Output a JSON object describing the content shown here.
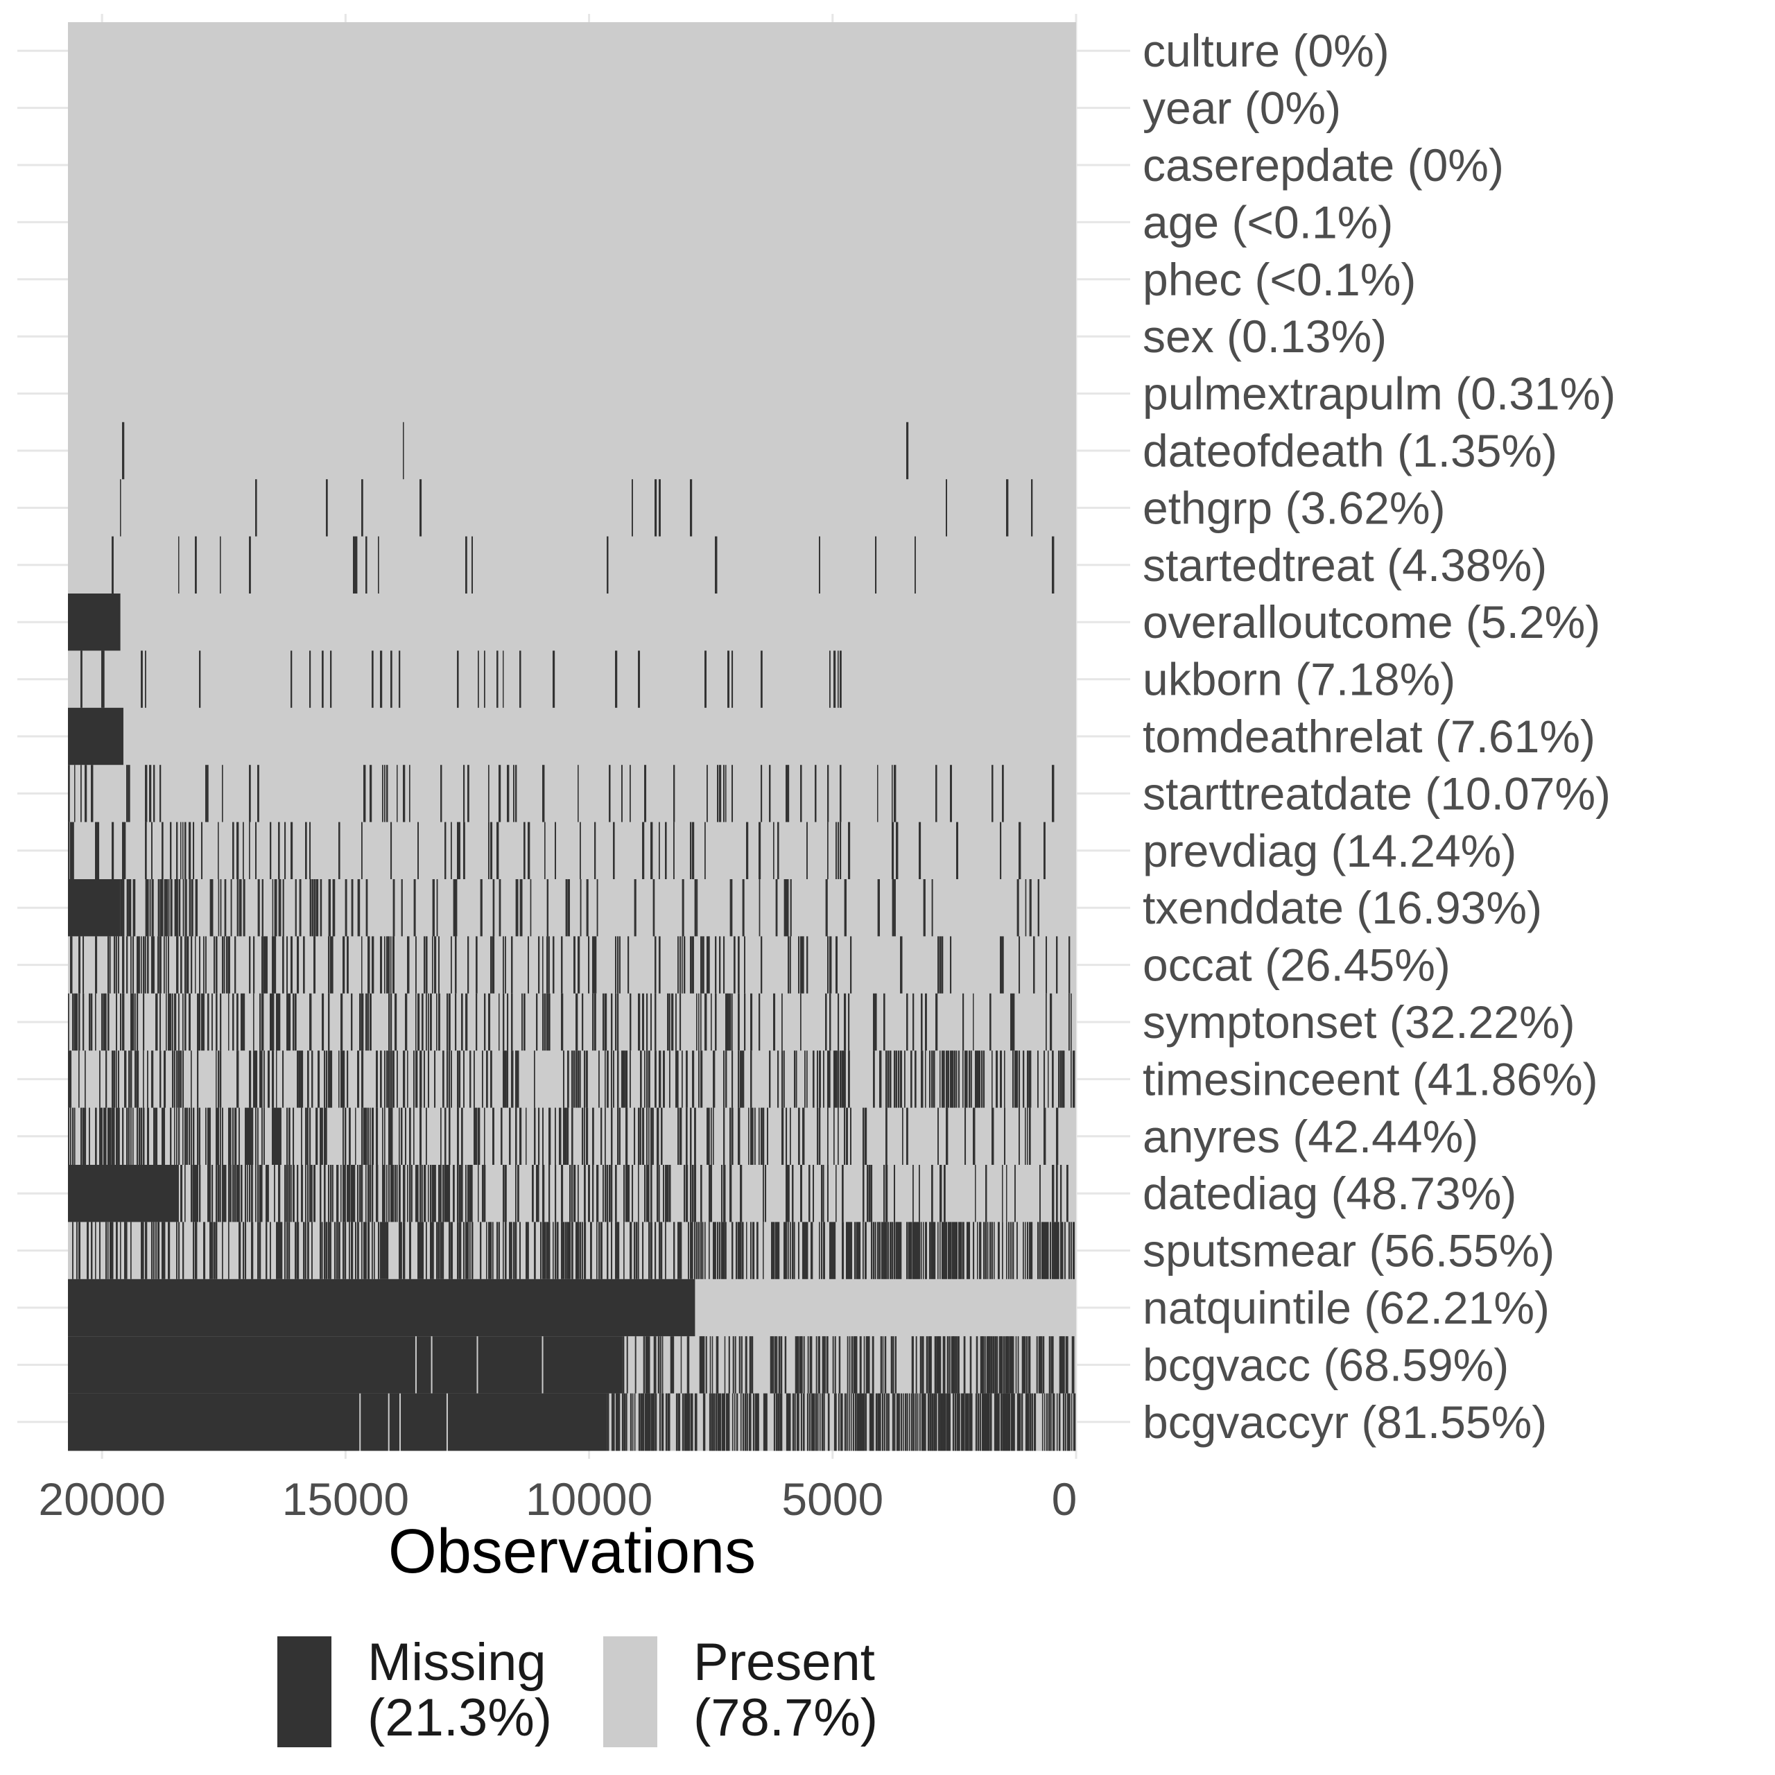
{
  "chart_data": {
    "type": "heatmap",
    "xlabel": "Observations",
    "xlim": [
      0,
      20700
    ],
    "x_reversed": true,
    "x_ticks": [
      20000,
      15000,
      10000,
      5000,
      0
    ],
    "x_tick_labels": [
      "20000",
      "15000",
      "10000",
      "5000",
      "0"
    ],
    "grid": true,
    "legend_position": "bottom",
    "colors": {
      "missing": "#333333",
      "present": "#cccccc",
      "grid": "#e6e6e6",
      "axis_text": "#4d4d4d"
    },
    "variables": [
      {
        "name": "culture",
        "label": "culture (0%)",
        "missing_pct": 0
      },
      {
        "name": "year",
        "label": "year (0%)",
        "missing_pct": 0
      },
      {
        "name": "caserepdate",
        "label": "caserepdate (0%)",
        "missing_pct": 0
      },
      {
        "name": "age",
        "label": "age (<0.1%)",
        "missing_pct": 0.05
      },
      {
        "name": "phec",
        "label": "phec (<0.1%)",
        "missing_pct": 0.05
      },
      {
        "name": "sex",
        "label": "sex (0.13%)",
        "missing_pct": 0.13
      },
      {
        "name": "pulmextrapulm",
        "label": "pulmextrapulm (0.31%)",
        "missing_pct": 0.31
      },
      {
        "name": "dateofdeath",
        "label": "dateofdeath (1.35%)",
        "missing_pct": 1.35
      },
      {
        "name": "ethgrp",
        "label": "ethgrp (3.62%)",
        "missing_pct": 3.62
      },
      {
        "name": "startedtreat",
        "label": "startedtreat (4.38%)",
        "missing_pct": 4.38
      },
      {
        "name": "overalloutcome",
        "label": "overalloutcome (5.2%)",
        "missing_pct": 5.2
      },
      {
        "name": "ukborn",
        "label": "ukborn (7.18%)",
        "missing_pct": 7.18
      },
      {
        "name": "tomdeathrelat",
        "label": "tomdeathrelat (7.61%)",
        "missing_pct": 7.61
      },
      {
        "name": "starttreatdate",
        "label": "starttreatdate (10.07%)",
        "missing_pct": 10.07
      },
      {
        "name": "prevdiag",
        "label": "prevdiag (14.24%)",
        "missing_pct": 14.24
      },
      {
        "name": "txenddate",
        "label": "txenddate (16.93%)",
        "missing_pct": 16.93
      },
      {
        "name": "occat",
        "label": "occat (26.45%)",
        "missing_pct": 26.45
      },
      {
        "name": "symptonset",
        "label": "symptonset (32.22%)",
        "missing_pct": 32.22
      },
      {
        "name": "timesinceent",
        "label": "timesinceent (41.86%)",
        "missing_pct": 41.86
      },
      {
        "name": "anyres",
        "label": "anyres (42.44%)",
        "missing_pct": 42.44
      },
      {
        "name": "datediag",
        "label": "datediag (48.73%)",
        "missing_pct": 48.73
      },
      {
        "name": "sputsmear",
        "label": "sputsmear (56.55%)",
        "missing_pct": 56.55
      },
      {
        "name": "natquintile",
        "label": "natquintile (62.21%)",
        "missing_pct": 62.21
      },
      {
        "name": "bcgvacc",
        "label": "bcgvacc (68.59%)",
        "missing_pct": 68.59
      },
      {
        "name": "bcgvaccyr",
        "label": "bcgvaccyr (81.55%)",
        "missing_pct": 81.55
      }
    ],
    "legend": [
      {
        "key": "missing",
        "label": "Missing",
        "pct_label": "(21.3%)",
        "percent": 21.3
      },
      {
        "key": "present",
        "label": "Present",
        "pct_label": "(78.7%)",
        "percent": 78.7
      }
    ]
  }
}
